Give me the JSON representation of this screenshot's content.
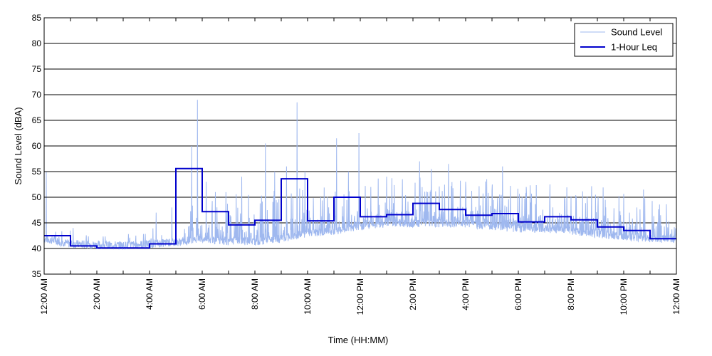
{
  "chart_data": {
    "type": "line",
    "title": "",
    "xlabel": "Time (HH:MM)",
    "ylabel": "Sound Level (dBA)",
    "xlim": [
      0,
      24
    ],
    "ylim": [
      35,
      85
    ],
    "yticks": [
      35,
      40,
      45,
      50,
      55,
      60,
      65,
      70,
      75,
      80,
      85
    ],
    "xticks": [
      {
        "x": 0,
        "label": "12:00 AM"
      },
      {
        "x": 2,
        "label": "2:00 AM"
      },
      {
        "x": 4,
        "label": "4:00 AM"
      },
      {
        "x": 6,
        "label": "6:00 AM"
      },
      {
        "x": 8,
        "label": "8:00 AM"
      },
      {
        "x": 10,
        "label": "10:00 AM"
      },
      {
        "x": 12,
        "label": "12:00 PM"
      },
      {
        "x": 14,
        "label": "2:00 PM"
      },
      {
        "x": 16,
        "label": "4:00 PM"
      },
      {
        "x": 18,
        "label": "6:00 PM"
      },
      {
        "x": 20,
        "label": "8:00 PM"
      },
      {
        "x": 22,
        "label": "10:00 PM"
      },
      {
        "x": 24,
        "label": "12:00 AM"
      }
    ],
    "grid": "horizontal",
    "legend_position": "top-right",
    "series": [
      {
        "name": "Sound Level",
        "color": "#9fb8ef",
        "style": "thin-line",
        "baseline_by_hour": [
          41.5,
          40.5,
          40.3,
          40.2,
          40.5,
          40.8,
          41.5,
          41.0,
          41.0,
          41.5,
          42.5,
          43.0,
          44.0,
          44.5,
          44.5,
          44.5,
          44.5,
          44.0,
          43.5,
          43.5,
          43.0,
          42.5,
          42.0,
          41.5
        ],
        "peaks": [
          {
            "x": 0.08,
            "y": 55.0
          },
          {
            "x": 1.1,
            "y": 44.0
          },
          {
            "x": 3.2,
            "y": 42.8
          },
          {
            "x": 4.25,
            "y": 47.0
          },
          {
            "x": 4.85,
            "y": 48.0
          },
          {
            "x": 5.35,
            "y": 43.0
          },
          {
            "x": 5.6,
            "y": 60.0
          },
          {
            "x": 5.82,
            "y": 69.0
          },
          {
            "x": 6.15,
            "y": 53.0
          },
          {
            "x": 6.5,
            "y": 51.0
          },
          {
            "x": 6.9,
            "y": 51.0
          },
          {
            "x": 7.5,
            "y": 54.0
          },
          {
            "x": 8.4,
            "y": 60.5
          },
          {
            "x": 8.75,
            "y": 55.0
          },
          {
            "x": 9.2,
            "y": 56.0
          },
          {
            "x": 9.6,
            "y": 68.5
          },
          {
            "x": 9.9,
            "y": 55.0
          },
          {
            "x": 10.5,
            "y": 50.0
          },
          {
            "x": 11.1,
            "y": 61.5
          },
          {
            "x": 11.55,
            "y": 55.0
          },
          {
            "x": 11.95,
            "y": 62.5
          },
          {
            "x": 12.4,
            "y": 52.0
          },
          {
            "x": 13.0,
            "y": 54.0
          },
          {
            "x": 13.6,
            "y": 53.5
          },
          {
            "x": 14.25,
            "y": 57.0
          },
          {
            "x": 14.7,
            "y": 55.5
          },
          {
            "x": 15.35,
            "y": 56.5
          },
          {
            "x": 16.0,
            "y": 53.0
          },
          {
            "x": 16.8,
            "y": 53.5
          },
          {
            "x": 17.4,
            "y": 56.0
          },
          {
            "x": 18.3,
            "y": 52.0
          },
          {
            "x": 19.2,
            "y": 52.5
          },
          {
            "x": 20.2,
            "y": 50.0
          },
          {
            "x": 21.3,
            "y": 49.5
          },
          {
            "x": 22.5,
            "y": 48.0
          },
          {
            "x": 22.75,
            "y": 51.5
          },
          {
            "x": 23.4,
            "y": 46.5
          }
        ]
      },
      {
        "name": "1-Hour Leq",
        "color": "#0000cc",
        "style": "step",
        "x": [
          0,
          1,
          2,
          3,
          4,
          5,
          6,
          7,
          8,
          9,
          10,
          11,
          12,
          13,
          14,
          15,
          16,
          17,
          18,
          19,
          20,
          21,
          22,
          23
        ],
        "values": [
          42.5,
          40.5,
          40.1,
          40.1,
          40.9,
          55.6,
          47.2,
          44.6,
          45.5,
          53.6,
          45.4,
          50.0,
          46.2,
          46.6,
          48.8,
          47.6,
          46.5,
          46.8,
          45.2,
          46.2,
          45.6,
          44.2,
          43.5,
          41.9
        ]
      }
    ]
  }
}
